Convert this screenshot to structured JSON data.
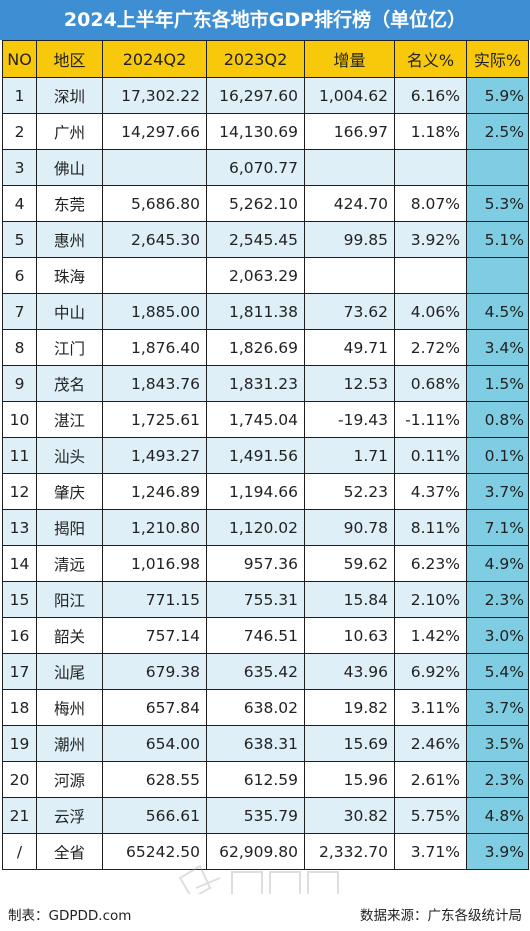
{
  "title": "2024上半年广东各地市GDP排行榜（单位亿）",
  "headers": [
    "NO",
    "地区",
    "2024Q2",
    "2023Q2",
    "增量",
    "名义%",
    "实际%"
  ],
  "rows": [
    {
      "no": "1",
      "region": "深圳",
      "q2024": "17,302.22",
      "q2023": "16,297.60",
      "increase": "1,004.62",
      "nominal": "6.16%",
      "actual": "5.9%"
    },
    {
      "no": "2",
      "region": "广州",
      "q2024": "14,297.66",
      "q2023": "14,130.69",
      "increase": "166.97",
      "nominal": "1.18%",
      "actual": "2.5%"
    },
    {
      "no": "3",
      "region": "佛山",
      "q2024": "",
      "q2023": "6,070.77",
      "increase": "",
      "nominal": "",
      "actual": ""
    },
    {
      "no": "4",
      "region": "东莞",
      "q2024": "5,686.80",
      "q2023": "5,262.10",
      "increase": "424.70",
      "nominal": "8.07%",
      "actual": "5.3%"
    },
    {
      "no": "5",
      "region": "惠州",
      "q2024": "2,645.30",
      "q2023": "2,545.45",
      "increase": "99.85",
      "nominal": "3.92%",
      "actual": "5.1%"
    },
    {
      "no": "6",
      "region": "珠海",
      "q2024": "",
      "q2023": "2,063.29",
      "increase": "",
      "nominal": "",
      "actual": ""
    },
    {
      "no": "7",
      "region": "中山",
      "q2024": "1,885.00",
      "q2023": "1,811.38",
      "increase": "73.62",
      "nominal": "4.06%",
      "actual": "4.5%"
    },
    {
      "no": "8",
      "region": "江门",
      "q2024": "1,876.40",
      "q2023": "1,826.69",
      "increase": "49.71",
      "nominal": "2.72%",
      "actual": "3.4%"
    },
    {
      "no": "9",
      "region": "茂名",
      "q2024": "1,843.76",
      "q2023": "1,831.23",
      "increase": "12.53",
      "nominal": "0.68%",
      "actual": "1.5%"
    },
    {
      "no": "10",
      "region": "湛江",
      "q2024": "1,725.61",
      "q2023": "1,745.04",
      "increase": "-19.43",
      "nominal": "-1.11%",
      "actual": "0.8%"
    },
    {
      "no": "11",
      "region": "汕头",
      "q2024": "1,493.27",
      "q2023": "1,491.56",
      "increase": "1.71",
      "nominal": "0.11%",
      "actual": "0.1%"
    },
    {
      "no": "12",
      "region": "肇庆",
      "q2024": "1,246.89",
      "q2023": "1,194.66",
      "increase": "52.23",
      "nominal": "4.37%",
      "actual": "3.7%"
    },
    {
      "no": "13",
      "region": "揭阳",
      "q2024": "1,210.80",
      "q2023": "1,120.02",
      "increase": "90.78",
      "nominal": "8.11%",
      "actual": "7.1%"
    },
    {
      "no": "14",
      "region": "清远",
      "q2024": "1,016.98",
      "q2023": "957.36",
      "increase": "59.62",
      "nominal": "6.23%",
      "actual": "4.9%"
    },
    {
      "no": "15",
      "region": "阳江",
      "q2024": "771.15",
      "q2023": "755.31",
      "increase": "15.84",
      "nominal": "2.10%",
      "actual": "2.3%"
    },
    {
      "no": "16",
      "region": "韶关",
      "q2024": "757.14",
      "q2023": "746.51",
      "increase": "10.63",
      "nominal": "1.42%",
      "actual": "3.0%"
    },
    {
      "no": "17",
      "region": "汕尾",
      "q2024": "679.38",
      "q2023": "635.42",
      "increase": "43.96",
      "nominal": "6.92%",
      "actual": "5.4%"
    },
    {
      "no": "18",
      "region": "梅州",
      "q2024": "657.84",
      "q2023": "638.02",
      "increase": "19.82",
      "nominal": "3.11%",
      "actual": "3.7%"
    },
    {
      "no": "19",
      "region": "潮州",
      "q2024": "654.00",
      "q2023": "638.31",
      "increase": "15.69",
      "nominal": "2.46%",
      "actual": "3.5%"
    },
    {
      "no": "20",
      "region": "河源",
      "q2024": "628.55",
      "q2023": "612.59",
      "increase": "15.96",
      "nominal": "2.61%",
      "actual": "2.3%"
    },
    {
      "no": "21",
      "region": "云浮",
      "q2024": "566.61",
      "q2023": "535.79",
      "increase": "30.82",
      "nominal": "5.75%",
      "actual": "4.8%"
    },
    {
      "no": "/",
      "region": "全省",
      "q2024": "65242.50",
      "q2023": "62,909.80",
      "increase": "2,332.70",
      "nominal": "3.71%",
      "actual": "3.9%"
    }
  ],
  "footer": {
    "maker": "制表：GDPDD.com",
    "source": "数据来源：广东各级统计局"
  },
  "colors": {
    "title_bg": "#3d8ed3",
    "header_bg": "#f8c90a",
    "odd_row_bg": "#deeff8",
    "actual_col_bg": "#7ecde2"
  }
}
